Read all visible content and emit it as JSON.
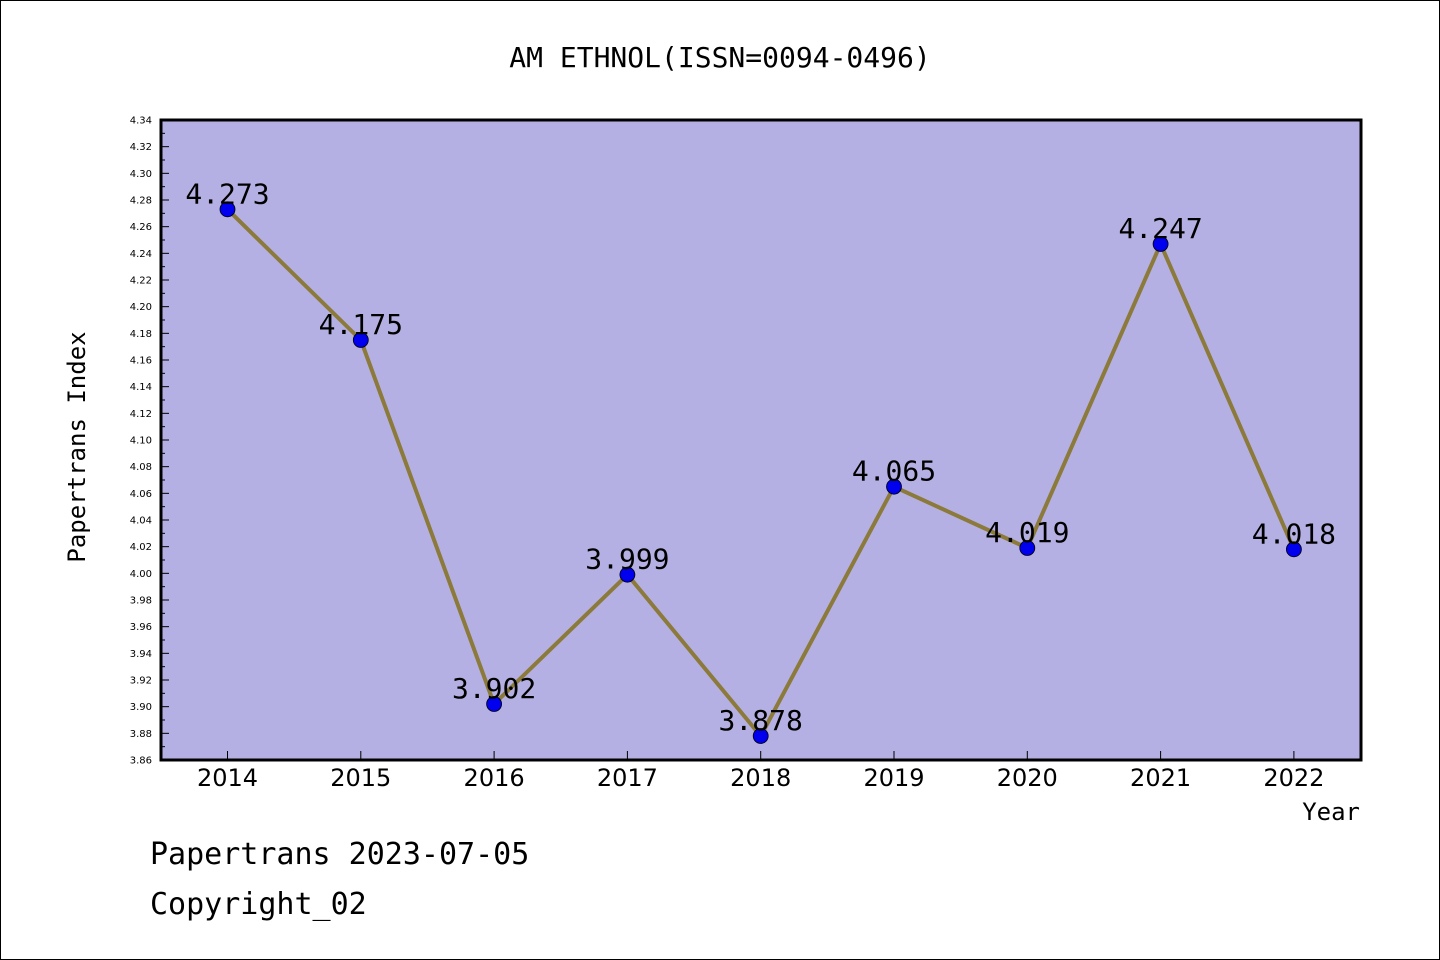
{
  "chart_data": {
    "type": "line",
    "title": "AM ETHNOL(ISSN=0094-0496)",
    "xlabel": "Year",
    "ylabel": "Papertrans Index",
    "categories": [
      "2014",
      "2015",
      "2016",
      "2017",
      "2018",
      "2019",
      "2020",
      "2021",
      "2022"
    ],
    "series": [
      {
        "values": [
          4.273,
          4.175,
          3.902,
          3.999,
          3.878,
          4.065,
          4.019,
          4.247,
          4.018
        ],
        "data_labels": [
          "4.273",
          "4.175",
          "3.902",
          "3.999",
          "3.878",
          "4.065",
          "4.019",
          "4.247",
          "4.018"
        ],
        "line_color": "#8b7a3a",
        "marker_color": "#0000ee"
      }
    ],
    "ylim": [
      3.86,
      4.34
    ],
    "yticks": [
      "3.86",
      "3.88",
      "3.90",
      "3.92",
      "3.94",
      "3.96",
      "3.98",
      "4.00",
      "4.02",
      "4.04",
      "4.06",
      "4.08",
      "4.10",
      "4.12",
      "4.14",
      "4.16",
      "4.18",
      "4.20",
      "4.22",
      "4.24",
      "4.26",
      "4.28",
      "4.30",
      "4.32",
      "4.34"
    ],
    "grid": false,
    "plot_background": "#b5b0e3"
  },
  "footer": {
    "line1": "Papertrans 2023-07-05",
    "line2": "Copyright_02"
  }
}
